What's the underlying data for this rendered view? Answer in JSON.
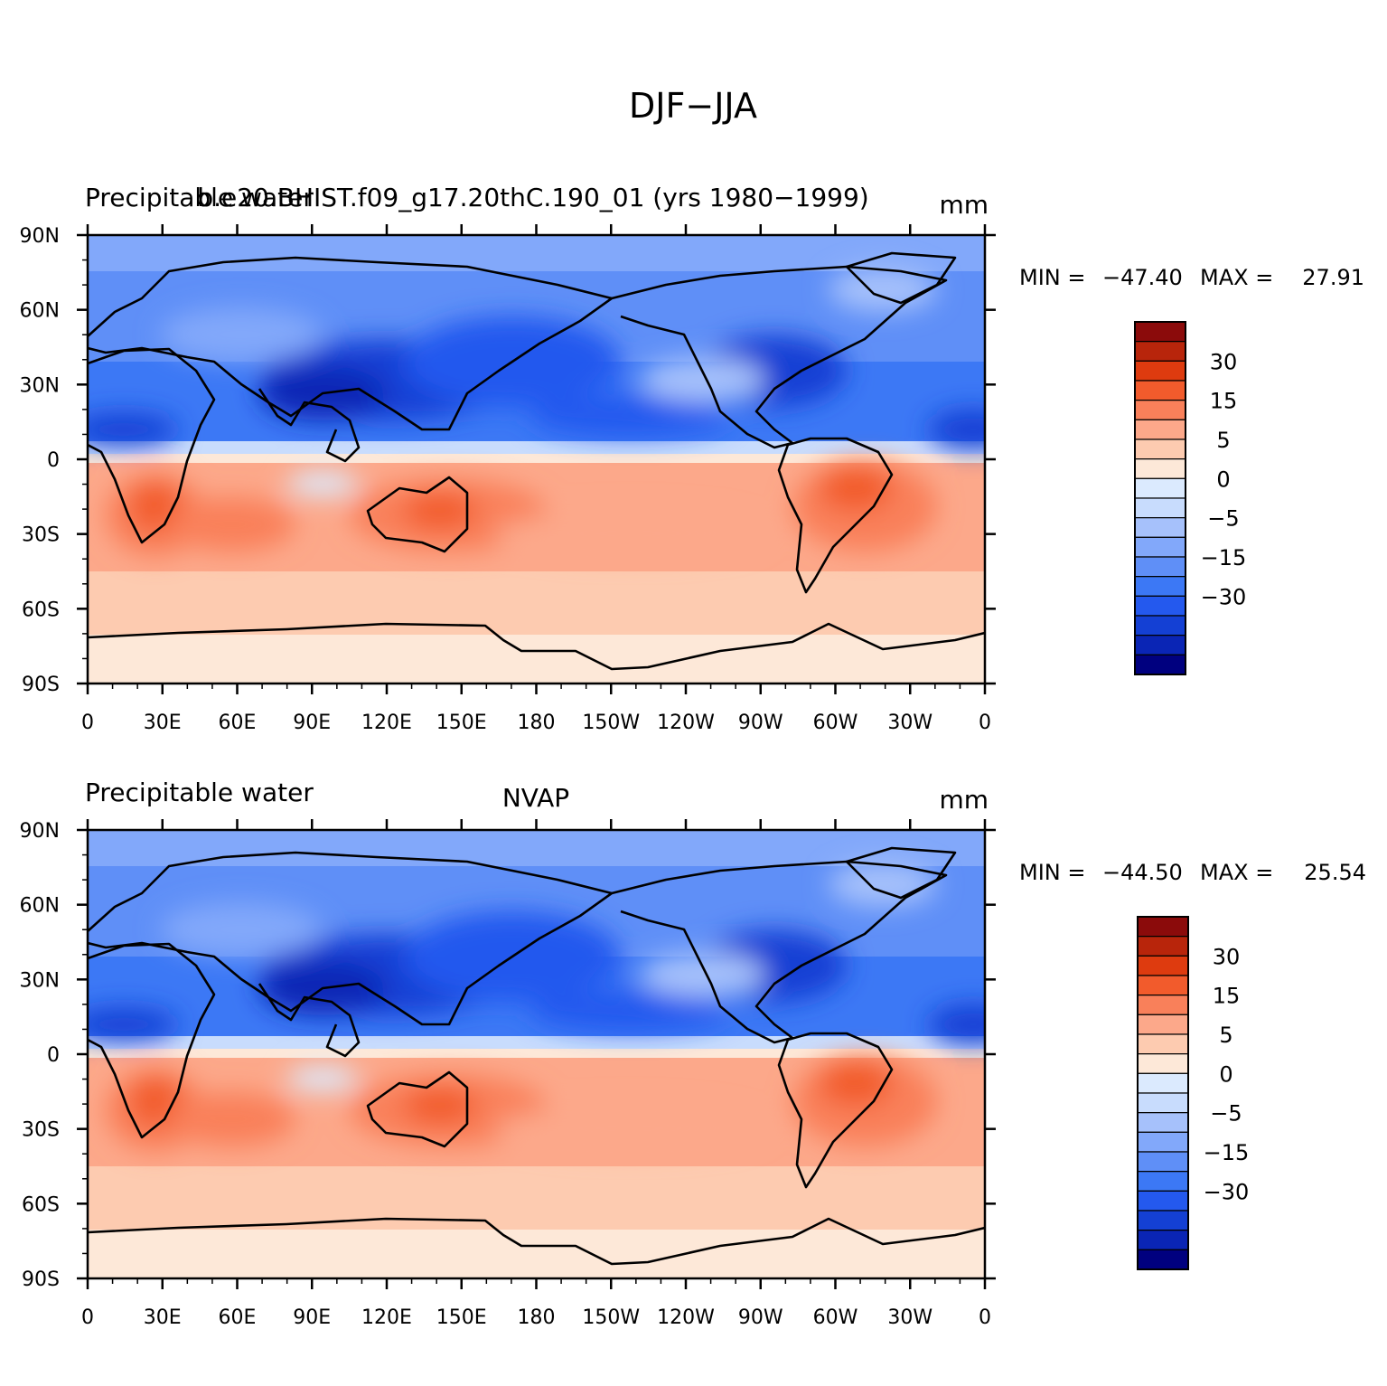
{
  "figure": {
    "title": "DJF−JJA"
  },
  "palette": [
    "#00007f",
    "#0a25b5",
    "#1440d4",
    "#2459ee",
    "#3c78f5",
    "#5f8ff7",
    "#82a8fa",
    "#a6c1fb",
    "#c8dcfd",
    "#dbeafe",
    "#fde8d8",
    "#fdcbb0",
    "#fca88a",
    "#f9805a",
    "#f25b2c",
    "#de3b0f",
    "#b8250b",
    "#8b0b0b"
  ],
  "colorbar_labels": [
    "30",
    "15",
    "5",
    "0",
    "−5",
    "−15",
    "−30"
  ],
  "x_ticks": [
    "0",
    "30E",
    "60E",
    "90E",
    "120E",
    "150E",
    "180",
    "150W",
    "120W",
    "90W",
    "60W",
    "30W",
    "0"
  ],
  "y_ticks": [
    "90N",
    "60N",
    "30N",
    "0",
    "30S",
    "60S",
    "90S"
  ],
  "panels": [
    {
      "left_title": "Precipitable water",
      "center_title": "b.e20.BHIST.f09_g17.20thC.190_01 (yrs 1980−1999)",
      "units": "mm",
      "min_label": "MIN =",
      "min_value": "−47.40",
      "max_label": "MAX =",
      "max_value": "27.91"
    },
    {
      "left_title": "Precipitable water",
      "center_title": "NVAP",
      "units": "mm",
      "min_label": "MIN =",
      "min_value": "−44.50",
      "max_label": "MAX =",
      "max_value": "25.54"
    }
  ]
}
